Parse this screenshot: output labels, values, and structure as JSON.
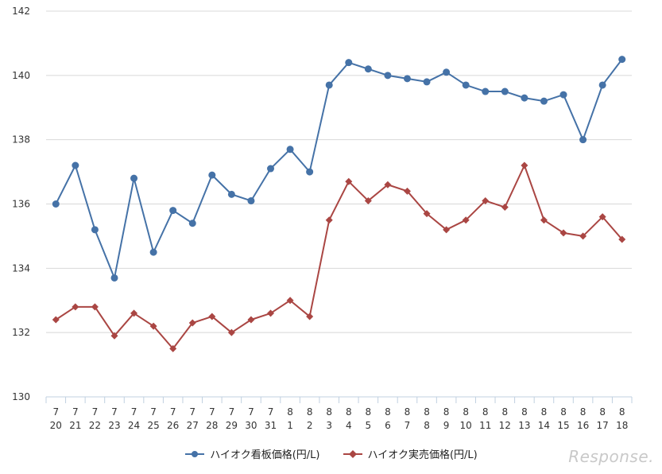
{
  "chart_data": {
    "type": "line",
    "categories": [
      [
        "7",
        "20"
      ],
      [
        "7",
        "21"
      ],
      [
        "7",
        "22"
      ],
      [
        "7",
        "23"
      ],
      [
        "7",
        "24"
      ],
      [
        "7",
        "25"
      ],
      [
        "7",
        "26"
      ],
      [
        "7",
        "27"
      ],
      [
        "7",
        "28"
      ],
      [
        "7",
        "29"
      ],
      [
        "7",
        "30"
      ],
      [
        "7",
        "31"
      ],
      [
        "8",
        "1"
      ],
      [
        "8",
        "2"
      ],
      [
        "8",
        "3"
      ],
      [
        "8",
        "4"
      ],
      [
        "8",
        "5"
      ],
      [
        "8",
        "6"
      ],
      [
        "8",
        "7"
      ],
      [
        "8",
        "8"
      ],
      [
        "8",
        "9"
      ],
      [
        "8",
        "10"
      ],
      [
        "8",
        "11"
      ],
      [
        "8",
        "12"
      ],
      [
        "8",
        "13"
      ],
      [
        "8",
        "14"
      ],
      [
        "8",
        "15"
      ],
      [
        "8",
        "16"
      ],
      [
        "8",
        "17"
      ],
      [
        "8",
        "18"
      ]
    ],
    "series": [
      {
        "name": "ハイオク看板価格(円/L)",
        "color": "#4572a7",
        "marker": "circle",
        "values": [
          136.0,
          137.2,
          135.2,
          133.7,
          136.8,
          134.5,
          135.8,
          135.4,
          136.9,
          136.3,
          136.1,
          137.1,
          137.7,
          137.0,
          139.7,
          140.4,
          140.2,
          140.0,
          139.9,
          139.8,
          140.1,
          139.7,
          139.5,
          139.5,
          139.3,
          139.2,
          139.4,
          138.0,
          139.7,
          140.5
        ]
      },
      {
        "name": "ハイオク実売価格(円/L)",
        "color": "#aa4643",
        "marker": "diamond",
        "values": [
          132.4,
          132.8,
          132.8,
          131.9,
          132.6,
          132.2,
          131.5,
          132.3,
          132.5,
          132.0,
          132.4,
          132.6,
          133.0,
          132.5,
          135.5,
          136.7,
          136.1,
          136.6,
          136.4,
          135.7,
          135.2,
          135.5,
          136.1,
          135.9,
          137.2,
          135.5,
          135.1,
          135.0,
          135.6,
          134.9
        ]
      }
    ],
    "ylim": [
      130,
      142
    ],
    "yticks": [
      130,
      132,
      134,
      136,
      138,
      140,
      142
    ],
    "grid": true,
    "legend": "bottom"
  },
  "watermark": "Response."
}
